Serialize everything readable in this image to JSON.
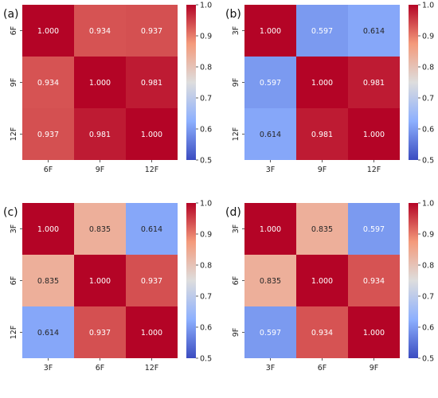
{
  "chart_data": [
    {
      "type": "heatmap",
      "panel_label": "(a)",
      "x_categories": [
        "6F",
        "9F",
        "12F"
      ],
      "y_categories": [
        "6F",
        "9F",
        "12F"
      ],
      "values": [
        [
          1.0,
          0.934,
          0.937
        ],
        [
          0.934,
          1.0,
          0.981
        ],
        [
          0.937,
          0.981,
          1.0
        ]
      ],
      "value_labels": [
        [
          "1.000",
          "0.934",
          "0.937"
        ],
        [
          "0.934",
          "1.000",
          "0.981"
        ],
        [
          "0.937",
          "0.981",
          "1.000"
        ]
      ],
      "colorbar": {
        "range": [
          0.5,
          1.0
        ],
        "ticks": [
          "0.5",
          "0.6",
          "0.7",
          "0.8",
          "0.9",
          "1.0"
        ],
        "colormap": "coolwarm"
      }
    },
    {
      "type": "heatmap",
      "panel_label": "(b)",
      "x_categories": [
        "3F",
        "9F",
        "12F"
      ],
      "y_categories": [
        "3F",
        "9F",
        "12F"
      ],
      "values": [
        [
          1.0,
          0.597,
          0.614
        ],
        [
          0.597,
          1.0,
          0.981
        ],
        [
          0.614,
          0.981,
          1.0
        ]
      ],
      "value_labels": [
        [
          "1.000",
          "0.597",
          "0.614"
        ],
        [
          "0.597",
          "1.000",
          "0.981"
        ],
        [
          "0.614",
          "0.981",
          "1.000"
        ]
      ],
      "colorbar": {
        "range": [
          0.5,
          1.0
        ],
        "ticks": [
          "0.5",
          "0.6",
          "0.7",
          "0.8",
          "0.9",
          "1.0"
        ],
        "colormap": "coolwarm"
      }
    },
    {
      "type": "heatmap",
      "panel_label": "(c)",
      "x_categories": [
        "3F",
        "6F",
        "12F"
      ],
      "y_categories": [
        "3F",
        "6F",
        "12F"
      ],
      "values": [
        [
          1.0,
          0.835,
          0.614
        ],
        [
          0.835,
          1.0,
          0.937
        ],
        [
          0.614,
          0.937,
          1.0
        ]
      ],
      "value_labels": [
        [
          "1.000",
          "0.835",
          "0.614"
        ],
        [
          "0.835",
          "1.000",
          "0.937"
        ],
        [
          "0.614",
          "0.937",
          "1.000"
        ]
      ],
      "colorbar": {
        "range": [
          0.5,
          1.0
        ],
        "ticks": [
          "0.5",
          "0.6",
          "0.7",
          "0.8",
          "0.9",
          "1.0"
        ],
        "colormap": "coolwarm"
      }
    },
    {
      "type": "heatmap",
      "panel_label": "(d)",
      "x_categories": [
        "3F",
        "6F",
        "9F"
      ],
      "y_categories": [
        "3F",
        "6F",
        "9F"
      ],
      "values": [
        [
          1.0,
          0.835,
          0.597
        ],
        [
          0.835,
          1.0,
          0.934
        ],
        [
          0.597,
          0.934,
          1.0
        ]
      ],
      "value_labels": [
        [
          "1.000",
          "0.835",
          "0.597"
        ],
        [
          "0.835",
          "1.000",
          "0.934"
        ],
        [
          "0.597",
          "0.934",
          "1.000"
        ]
      ],
      "colorbar": {
        "range": [
          0.5,
          1.0
        ],
        "ticks": [
          "0.5",
          "0.6",
          "0.7",
          "0.8",
          "0.9",
          "1.0"
        ],
        "colormap": "coolwarm"
      }
    }
  ]
}
